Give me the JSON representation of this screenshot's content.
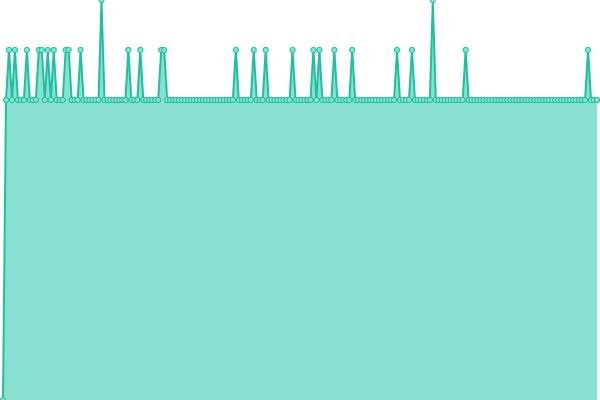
{
  "chart_data": {
    "type": "area",
    "color": "#1fbf9f",
    "fill": "#88e0d0",
    "ylim": [
      0,
      8
    ],
    "values": [
      0,
      6,
      7,
      6,
      7,
      6,
      6,
      6,
      7,
      6,
      6,
      6,
      7,
      7,
      6,
      7,
      6,
      7,
      6,
      6,
      6,
      7,
      7,
      6,
      6,
      6,
      7,
      6,
      6,
      6,
      6,
      6,
      6,
      8,
      6,
      6,
      6,
      6,
      6,
      6,
      6,
      6,
      7,
      6,
      6,
      6,
      7,
      6,
      6,
      6,
      6,
      6,
      6,
      7,
      7,
      6,
      6,
      6,
      6,
      6,
      6,
      6,
      6,
      6,
      6,
      6,
      6,
      6,
      6,
      6,
      6,
      6,
      6,
      6,
      6,
      6,
      6,
      6,
      7,
      6,
      6,
      6,
      6,
      6,
      7,
      6,
      6,
      6,
      7,
      6,
      6,
      6,
      6,
      6,
      6,
      6,
      6,
      7,
      6,
      6,
      6,
      6,
      6,
      6,
      7,
      6,
      7,
      6,
      6,
      6,
      6,
      7,
      6,
      6,
      6,
      6,
      6,
      7,
      6,
      6,
      6,
      6,
      6,
      6,
      6,
      6,
      6,
      6,
      6,
      6,
      6,
      6,
      7,
      6,
      6,
      6,
      6,
      7,
      6,
      6,
      6,
      6,
      6,
      6,
      8,
      6,
      6,
      6,
      6,
      6,
      6,
      6,
      6,
      6,
      6,
      7,
      6,
      6,
      6,
      6,
      6,
      6,
      6,
      6,
      6,
      6,
      6,
      6,
      6,
      6,
      6,
      6,
      6,
      6,
      6,
      6,
      6,
      6,
      6,
      6,
      6,
      6,
      6,
      6,
      6,
      6,
      6,
      6,
      6,
      6,
      6,
      6,
      6,
      6,
      6,
      6,
      7,
      6,
      6,
      6
    ]
  }
}
